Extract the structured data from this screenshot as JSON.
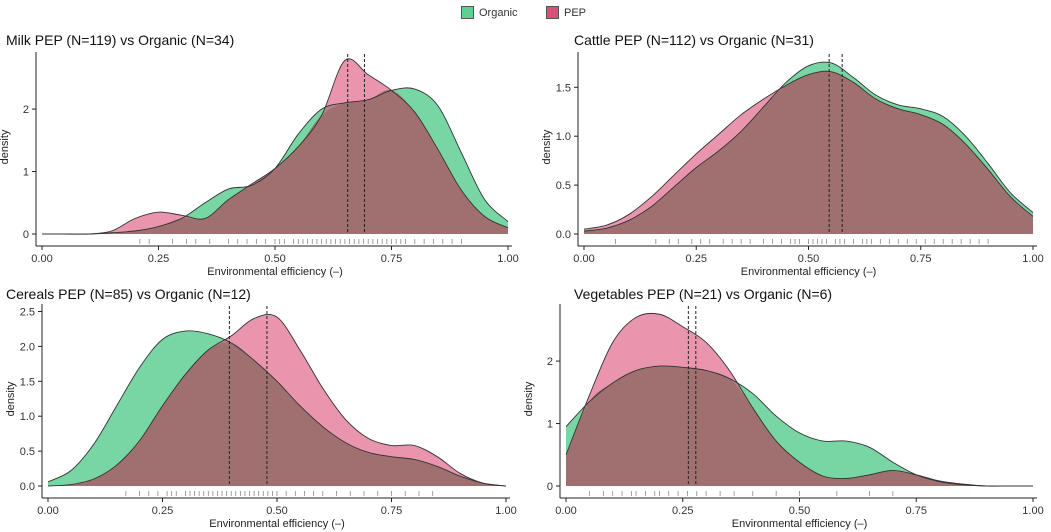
{
  "legend": {
    "items": [
      {
        "label": "Organic",
        "color": "#3cb878"
      },
      {
        "label": "PEP",
        "color": "#d63f6b"
      }
    ]
  },
  "colors": {
    "organic": "#5fcf93",
    "pep": "#d94f77",
    "overlap": "#a07070",
    "mean_line": "#222222"
  },
  "chart_data": [
    {
      "type": "area",
      "title": "Milk PEP (N=119) vs Organic (N=34)",
      "xlabel": "Environmental efficiency (–)",
      "ylabel": "density",
      "xlim": [
        0,
        1
      ],
      "ylim": [
        0,
        2.85
      ],
      "xticks": [
        "0.00",
        "0.25",
        "0.50",
        "0.75",
        "1.00"
      ],
      "xtick_values": [
        0,
        0.25,
        0.5,
        0.75,
        1.0
      ],
      "yticks": [
        "0",
        "1",
        "2"
      ],
      "ytick_values": [
        0,
        1,
        2
      ],
      "x": [
        0.0,
        0.05,
        0.1,
        0.15,
        0.2,
        0.25,
        0.3,
        0.35,
        0.4,
        0.45,
        0.5,
        0.55,
        0.6,
        0.65,
        0.7,
        0.75,
        0.8,
        0.85,
        0.9,
        0.95,
        1.0
      ],
      "series": [
        {
          "name": "Organic",
          "values": [
            0,
            0,
            0,
            0.02,
            0.05,
            0.12,
            0.25,
            0.5,
            0.72,
            0.78,
            1.05,
            1.6,
            2.0,
            2.1,
            2.15,
            2.3,
            2.32,
            2.05,
            1.3,
            0.55,
            0.2
          ]
        },
        {
          "name": "PEP",
          "values": [
            0,
            0,
            0,
            0.05,
            0.25,
            0.35,
            0.3,
            0.25,
            0.55,
            0.8,
            1.05,
            1.4,
            1.9,
            2.78,
            2.55,
            2.3,
            1.95,
            1.35,
            0.7,
            0.28,
            0.1
          ]
        }
      ],
      "mean_lines": [
        0.656,
        0.692
      ],
      "rug": [
        0.21,
        0.23,
        0.28,
        0.31,
        0.33,
        0.36,
        0.4,
        0.42,
        0.44,
        0.46,
        0.48,
        0.5,
        0.51,
        0.52,
        0.54,
        0.55,
        0.56,
        0.57,
        0.58,
        0.59,
        0.6,
        0.61,
        0.62,
        0.63,
        0.64,
        0.65,
        0.66,
        0.67,
        0.68,
        0.69,
        0.7,
        0.71,
        0.72,
        0.73,
        0.74,
        0.75,
        0.76,
        0.77,
        0.78,
        0.8,
        0.82,
        0.84,
        0.86,
        0.88,
        0.9
      ]
    },
    {
      "type": "area",
      "title": "Cattle PEP (N=112) vs Organic (N=31)",
      "xlabel": "Environmental efficiency (–)",
      "ylabel": "density",
      "xlim": [
        0,
        1
      ],
      "ylim": [
        0,
        1.82
      ],
      "xticks": [
        "0.00",
        "0.25",
        "0.50",
        "0.75",
        "1.00"
      ],
      "xtick_values": [
        0,
        0.25,
        0.5,
        0.75,
        1.0
      ],
      "yticks": [
        "0.0",
        "0.5",
        "1.0",
        "1.5"
      ],
      "ytick_values": [
        0,
        0.5,
        1.0,
        1.5
      ],
      "x": [
        0.0,
        0.05,
        0.1,
        0.15,
        0.2,
        0.25,
        0.3,
        0.35,
        0.4,
        0.45,
        0.5,
        0.55,
        0.6,
        0.65,
        0.7,
        0.75,
        0.8,
        0.85,
        0.9,
        0.95,
        1.0
      ],
      "series": [
        {
          "name": "Organic",
          "values": [
            0.03,
            0.06,
            0.14,
            0.28,
            0.48,
            0.68,
            0.85,
            1.05,
            1.3,
            1.55,
            1.72,
            1.75,
            1.6,
            1.42,
            1.32,
            1.28,
            1.2,
            1.0,
            0.72,
            0.42,
            0.22
          ]
        },
        {
          "name": "PEP",
          "values": [
            0.05,
            0.09,
            0.2,
            0.38,
            0.6,
            0.82,
            1.02,
            1.22,
            1.38,
            1.52,
            1.63,
            1.66,
            1.55,
            1.38,
            1.28,
            1.22,
            1.12,
            0.92,
            0.66,
            0.38,
            0.18
          ]
        }
      ],
      "mean_lines": [
        0.546,
        0.575
      ],
      "rug": [
        0.07,
        0.16,
        0.19,
        0.21,
        0.24,
        0.26,
        0.28,
        0.31,
        0.33,
        0.35,
        0.37,
        0.4,
        0.42,
        0.44,
        0.46,
        0.47,
        0.48,
        0.5,
        0.51,
        0.52,
        0.53,
        0.54,
        0.56,
        0.57,
        0.58,
        0.6,
        0.62,
        0.63,
        0.64,
        0.66,
        0.68,
        0.7,
        0.72,
        0.74,
        0.76,
        0.78,
        0.8,
        0.82,
        0.84,
        0.86,
        0.88,
        0.9
      ]
    },
    {
      "type": "area",
      "title": "Cereals PEP (N=85) vs Organic (N=12)",
      "xlabel": "Environmental efficiency (–)",
      "ylabel": "density",
      "xlim": [
        0,
        1
      ],
      "ylim": [
        0,
        2.55
      ],
      "xticks": [
        "0.00",
        "0.25",
        "0.50",
        "0.75",
        "1.00"
      ],
      "xtick_values": [
        0,
        0.25,
        0.5,
        0.75,
        1.0
      ],
      "yticks": [
        "0.0",
        "0.5",
        "1.0",
        "1.5",
        "2.0",
        "2.5"
      ],
      "ytick_values": [
        0,
        0.5,
        1.0,
        1.5,
        2.0,
        2.5
      ],
      "x": [
        0.0,
        0.05,
        0.1,
        0.15,
        0.2,
        0.25,
        0.3,
        0.35,
        0.4,
        0.45,
        0.5,
        0.55,
        0.6,
        0.65,
        0.7,
        0.75,
        0.8,
        0.85,
        0.9,
        0.95,
        1.0
      ],
      "series": [
        {
          "name": "Organic",
          "values": [
            0.06,
            0.22,
            0.6,
            1.15,
            1.7,
            2.1,
            2.22,
            2.18,
            2.05,
            1.8,
            1.5,
            1.15,
            0.85,
            0.62,
            0.48,
            0.42,
            0.38,
            0.28,
            0.14,
            0.04,
            0.0
          ]
        },
        {
          "name": "PEP",
          "values": [
            0.0,
            0.02,
            0.1,
            0.3,
            0.65,
            1.15,
            1.6,
            1.95,
            2.15,
            2.4,
            2.42,
            1.95,
            1.4,
            0.95,
            0.68,
            0.58,
            0.58,
            0.42,
            0.18,
            0.04,
            0.0
          ]
        }
      ],
      "mean_lines": [
        0.396,
        0.478
      ],
      "rug": [
        0.17,
        0.2,
        0.22,
        0.24,
        0.26,
        0.27,
        0.28,
        0.3,
        0.31,
        0.32,
        0.33,
        0.34,
        0.35,
        0.36,
        0.37,
        0.38,
        0.39,
        0.4,
        0.41,
        0.42,
        0.43,
        0.44,
        0.45,
        0.46,
        0.47,
        0.48,
        0.49,
        0.5,
        0.52,
        0.54,
        0.56,
        0.58,
        0.6,
        0.63,
        0.66,
        0.69,
        0.72,
        0.75,
        0.78,
        0.81,
        0.84
      ]
    },
    {
      "type": "area",
      "title": "Vegetables PEP (N=21) vs Organic (N=6)",
      "xlabel": "Environmental efficiency (–)",
      "ylabel": "density",
      "xlim": [
        0,
        1
      ],
      "ylim": [
        0,
        2.85
      ],
      "xticks": [
        "0.00",
        "0.25",
        "0.50",
        "0.75",
        "1.00"
      ],
      "xtick_values": [
        0,
        0.25,
        0.5,
        0.75,
        1.0
      ],
      "yticks": [
        "0",
        "1",
        "2"
      ],
      "ytick_values": [
        0,
        1,
        2
      ],
      "x": [
        0.0,
        0.05,
        0.1,
        0.15,
        0.2,
        0.25,
        0.3,
        0.35,
        0.4,
        0.45,
        0.5,
        0.55,
        0.6,
        0.65,
        0.7,
        0.75,
        0.8,
        0.85,
        0.9,
        0.95,
        1.0
      ],
      "series": [
        {
          "name": "Organic",
          "values": [
            0.95,
            1.35,
            1.65,
            1.85,
            1.92,
            1.9,
            1.85,
            1.72,
            1.48,
            1.12,
            0.85,
            0.72,
            0.72,
            0.62,
            0.38,
            0.18,
            0.07,
            0.02,
            0.0,
            0.0,
            0.0
          ]
        },
        {
          "name": "PEP",
          "values": [
            0.5,
            1.45,
            2.3,
            2.7,
            2.75,
            2.55,
            2.3,
            1.85,
            1.25,
            0.72,
            0.38,
            0.16,
            0.12,
            0.18,
            0.25,
            0.18,
            0.08,
            0.03,
            0.0,
            0.0,
            0.0
          ]
        }
      ],
      "mean_lines": [
        0.262,
        0.278
      ],
      "rug": [
        0.05,
        0.08,
        0.1,
        0.12,
        0.14,
        0.15,
        0.17,
        0.19,
        0.2,
        0.22,
        0.24,
        0.26,
        0.28,
        0.3,
        0.33,
        0.36,
        0.4,
        0.45,
        0.5,
        0.58,
        0.65,
        0.7
      ]
    }
  ]
}
